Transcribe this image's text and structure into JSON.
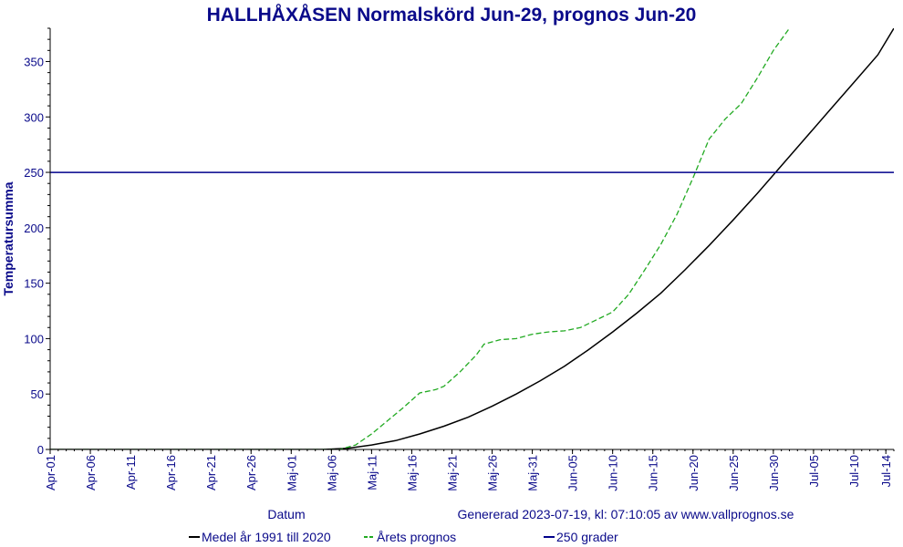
{
  "chart_data": {
    "type": "line",
    "title": "HALLHÅXÅSEN Normalskörd Jun-29, prognos Jun-20",
    "xlabel": "Datum",
    "ylabel": "Temperatursumma",
    "generated_text": "Genererad 2023-07-19, kl: 07:10:05 av www.vallprognos.se",
    "ylim": [
      0,
      380
    ],
    "yticks": [
      0,
      50,
      100,
      150,
      200,
      250,
      300,
      350
    ],
    "xlim": [
      "2023-04-01",
      "2023-07-15"
    ],
    "xticks": [
      {
        "date": "2023-04-01",
        "label": "Apr-01"
      },
      {
        "date": "2023-04-06",
        "label": "Apr-06"
      },
      {
        "date": "2023-04-11",
        "label": "Apr-11"
      },
      {
        "date": "2023-04-16",
        "label": "Apr-16"
      },
      {
        "date": "2023-04-21",
        "label": "Apr-21"
      },
      {
        "date": "2023-04-26",
        "label": "Apr-26"
      },
      {
        "date": "2023-05-01",
        "label": "Maj-01"
      },
      {
        "date": "2023-05-06",
        "label": "Maj-06"
      },
      {
        "date": "2023-05-11",
        "label": "Maj-11"
      },
      {
        "date": "2023-05-16",
        "label": "Maj-16"
      },
      {
        "date": "2023-05-21",
        "label": "Maj-21"
      },
      {
        "date": "2023-05-26",
        "label": "Maj-26"
      },
      {
        "date": "2023-05-31",
        "label": "Maj-31"
      },
      {
        "date": "2023-06-05",
        "label": "Jun-05"
      },
      {
        "date": "2023-06-10",
        "label": "Jun-10"
      },
      {
        "date": "2023-06-15",
        "label": "Jun-15"
      },
      {
        "date": "2023-06-20",
        "label": "Jun-20"
      },
      {
        "date": "2023-06-25",
        "label": "Jun-25"
      },
      {
        "date": "2023-06-30",
        "label": "Jun-30"
      },
      {
        "date": "2023-07-05",
        "label": "Jul-05"
      },
      {
        "date": "2023-07-10",
        "label": "Jul-10"
      },
      {
        "date": "2023-07-14",
        "label": "Jul-14"
      }
    ],
    "grid": false,
    "legend_position": "bottom",
    "series": [
      {
        "name": "Medel år 1991 till 2020",
        "color": "#000000",
        "style": "solid",
        "points": [
          [
            "2023-04-01",
            0
          ],
          [
            "2023-05-05",
            0
          ],
          [
            "2023-05-08",
            1
          ],
          [
            "2023-05-11",
            4
          ],
          [
            "2023-05-14",
            8
          ],
          [
            "2023-05-17",
            14
          ],
          [
            "2023-05-20",
            21
          ],
          [
            "2023-05-23",
            29
          ],
          [
            "2023-05-26",
            39
          ],
          [
            "2023-05-29",
            50
          ],
          [
            "2023-06-01",
            62
          ],
          [
            "2023-06-04",
            75
          ],
          [
            "2023-06-07",
            90
          ],
          [
            "2023-06-10",
            106
          ],
          [
            "2023-06-13",
            123
          ],
          [
            "2023-06-16",
            141
          ],
          [
            "2023-06-19",
            162
          ],
          [
            "2023-06-22",
            184
          ],
          [
            "2023-06-25",
            207
          ],
          [
            "2023-06-28",
            231
          ],
          [
            "2023-07-01",
            256
          ],
          [
            "2023-07-04",
            281
          ],
          [
            "2023-07-07",
            306
          ],
          [
            "2023-07-10",
            331
          ],
          [
            "2023-07-13",
            356
          ],
          [
            "2023-07-15",
            380
          ]
        ]
      },
      {
        "name": "Årets prognos",
        "color": "#22aa22",
        "style": "dashed",
        "points": [
          [
            "2023-04-01",
            0
          ],
          [
            "2023-05-07",
            0
          ],
          [
            "2023-05-09",
            4
          ],
          [
            "2023-05-11",
            14
          ],
          [
            "2023-05-13",
            26
          ],
          [
            "2023-05-15",
            38
          ],
          [
            "2023-05-17",
            51
          ],
          [
            "2023-05-19",
            54
          ],
          [
            "2023-05-20",
            57
          ],
          [
            "2023-05-22",
            70
          ],
          [
            "2023-05-24",
            85
          ],
          [
            "2023-05-25",
            95
          ],
          [
            "2023-05-27",
            99
          ],
          [
            "2023-05-29",
            100
          ],
          [
            "2023-05-31",
            104
          ],
          [
            "2023-06-02",
            106
          ],
          [
            "2023-06-04",
            107
          ],
          [
            "2023-06-06",
            110
          ],
          [
            "2023-06-08",
            117
          ],
          [
            "2023-06-10",
            124
          ],
          [
            "2023-06-12",
            140
          ],
          [
            "2023-06-14",
            162
          ],
          [
            "2023-06-16",
            185
          ],
          [
            "2023-06-18",
            212
          ],
          [
            "2023-06-20",
            245
          ],
          [
            "2023-06-22",
            280
          ],
          [
            "2023-06-24",
            298
          ],
          [
            "2023-06-26",
            312
          ],
          [
            "2023-06-28",
            335
          ],
          [
            "2023-06-30",
            360
          ],
          [
            "2023-07-02",
            380
          ]
        ]
      },
      {
        "name": "250 grader",
        "color": "#00008b",
        "style": "solid",
        "points": [
          [
            "2023-04-01",
            250
          ],
          [
            "2023-07-15",
            250
          ]
        ]
      }
    ]
  }
}
